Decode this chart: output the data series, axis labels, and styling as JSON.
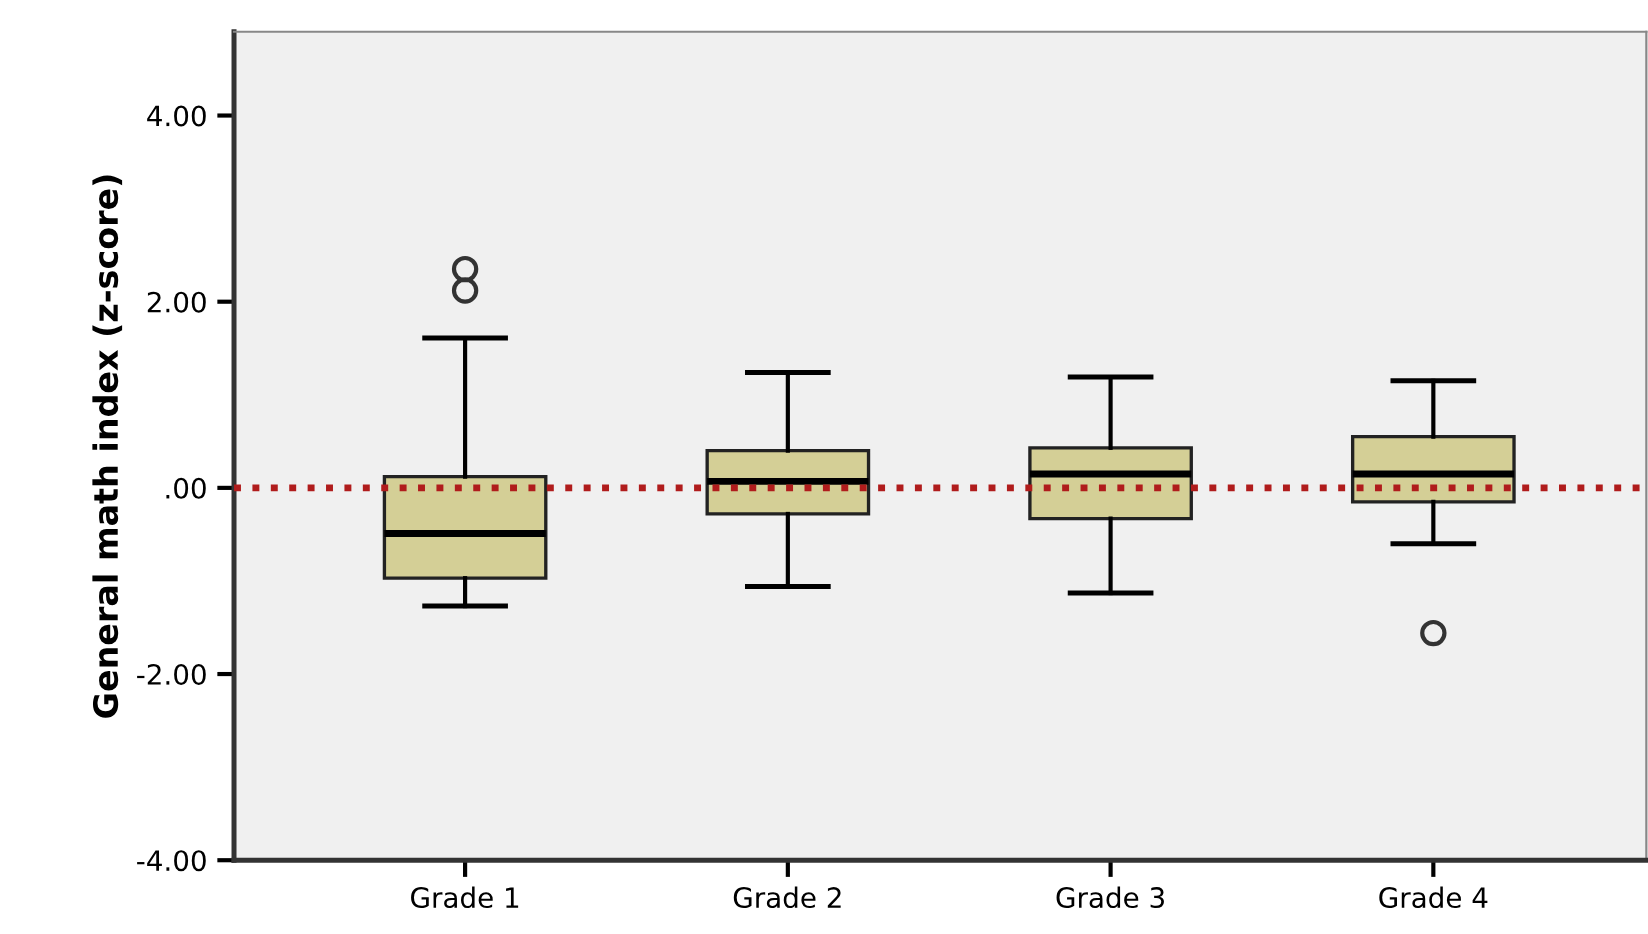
{
  "chart_data": {
    "type": "box",
    "ylabel": "General math index (z-score)",
    "categories": [
      "Grade 1",
      "Grade 2",
      "Grade 3",
      "Grade 4"
    ],
    "boxes": [
      {
        "low": -1.27,
        "q1": -0.97,
        "median": -0.49,
        "q3": 0.12,
        "high": 1.61,
        "outliers": [
          2.12,
          2.35
        ]
      },
      {
        "low": -1.06,
        "q1": -0.28,
        "median": 0.07,
        "q3": 0.4,
        "high": 1.24
      },
      {
        "low": -1.13,
        "q1": -0.33,
        "median": 0.15,
        "q3": 0.43,
        "high": 1.19
      },
      {
        "low": -0.6,
        "q1": -0.15,
        "median": 0.15,
        "q3": 0.55,
        "high": 1.15,
        "outliers": [
          -1.56
        ]
      }
    ],
    "color": "#d4cf96",
    "ylim": [
      -4,
      4.9
    ],
    "yticks": [
      {
        "value": -4,
        "label": "-4.00"
      },
      {
        "value": -2,
        "label": "-2.00"
      },
      {
        "value": 0,
        "label": ".00"
      },
      {
        "value": 2,
        "label": "2.00"
      },
      {
        "value": 4,
        "label": "4.00"
      }
    ],
    "ref_lines": [
      {
        "axis": "y",
        "value": 0,
        "label": null,
        "color": "#b01c1c",
        "line_style": "dotted"
      }
    ],
    "grid": false
  }
}
